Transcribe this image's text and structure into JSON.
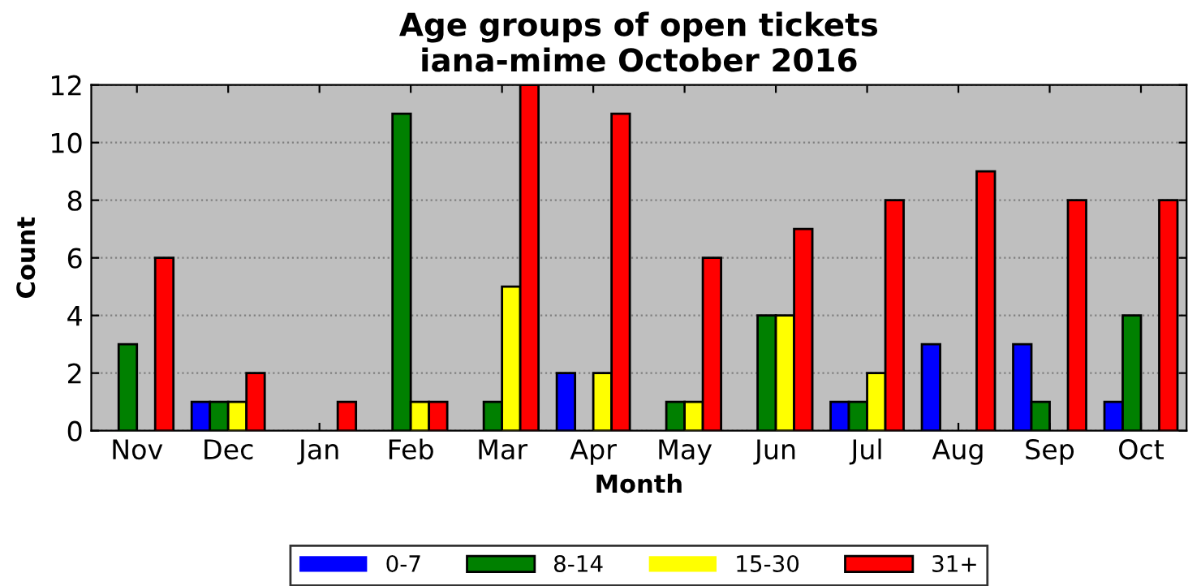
{
  "chart_data": {
    "type": "bar",
    "title": "Age groups of open tickets\niana-mime October 2016",
    "xlabel": "Month",
    "ylabel": "Count",
    "categories": [
      "Nov",
      "Dec",
      "Jan",
      "Feb",
      "Mar",
      "Apr",
      "May",
      "Jun",
      "Jul",
      "Aug",
      "Sep",
      "Oct"
    ],
    "series": [
      {
        "name": "0-7",
        "color": "#0000ff",
        "values": [
          0,
          1,
          0,
          0,
          0,
          2,
          0,
          0,
          1,
          3,
          3,
          1
        ]
      },
      {
        "name": "8-14",
        "color": "#008000",
        "values": [
          3,
          1,
          0,
          11,
          1,
          0,
          1,
          4,
          1,
          0,
          1,
          4
        ]
      },
      {
        "name": "15-30",
        "color": "#ffff00",
        "values": [
          0,
          1,
          0,
          1,
          5,
          2,
          1,
          4,
          2,
          0,
          0,
          0
        ]
      },
      {
        "name": "31+",
        "color": "#ff0000",
        "values": [
          6,
          2,
          1,
          1,
          12,
          11,
          6,
          7,
          8,
          9,
          8,
          8
        ]
      }
    ],
    "ylim": [
      0,
      12
    ],
    "yticks": [
      0,
      2,
      4,
      6,
      8,
      10,
      12
    ],
    "grid": "y",
    "legend": "bottom"
  }
}
